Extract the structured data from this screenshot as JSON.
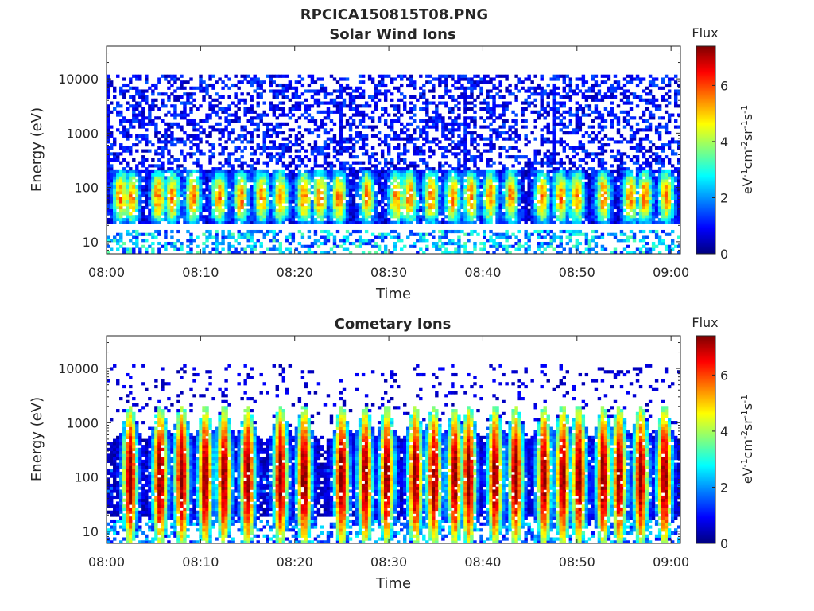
{
  "figure": {
    "title": "RPCICA150815T08.PNG"
  },
  "colormap": {
    "name": "jet",
    "stops": [
      "#00007f",
      "#0000ff",
      "#007fff",
      "#00ffff",
      "#7fff7f",
      "#ffff00",
      "#ff7f00",
      "#ff0000",
      "#7f0000"
    ]
  },
  "chart_data": [
    {
      "type": "heatmap",
      "title": "Solar Wind Ions",
      "xlabel": "Time",
      "ylabel": "Energy (eV)",
      "xlim": [
        "08:00",
        "09:01"
      ],
      "x_ticks": [
        "08:00",
        "08:10",
        "08:20",
        "08:30",
        "08:40",
        "08:50",
        "09:00"
      ],
      "y_scale": "log",
      "ylim": [
        6,
        40000
      ],
      "y_ticks": [
        "10",
        "100",
        "1000",
        "10000"
      ],
      "colorbar": {
        "label": "Flux",
        "unit": "eV-1cm-2sr-1s-1",
        "range": [
          0,
          7.4
        ],
        "ticks": [
          "0",
          "2",
          "4",
          "6"
        ]
      },
      "grid": false,
      "bursts_minutes": [
        1.5,
        2.7,
        5.5,
        7.0,
        9.2,
        12.0,
        14.3,
        16.5,
        18.5,
        21.0,
        22.7,
        24.7,
        27.7,
        30.8,
        32.2,
        34.5,
        36.8,
        38.7,
        40.8,
        43.0,
        46.3,
        48.3,
        50.0,
        52.8,
        55.7,
        57.2,
        59.5
      ],
      "peak_flux": 5.0,
      "peak_energy_eV": [
        30,
        150
      ]
    },
    {
      "type": "heatmap",
      "title": "Cometary Ions",
      "xlabel": "Time",
      "ylabel": "Energy (eV)",
      "xlim": [
        "08:00",
        "09:01"
      ],
      "x_ticks": [
        "08:00",
        "08:10",
        "08:20",
        "08:30",
        "08:40",
        "08:50",
        "09:00"
      ],
      "y_scale": "log",
      "ylim": [
        6,
        40000
      ],
      "y_ticks": [
        "10",
        "100",
        "1000",
        "10000"
      ],
      "colorbar": {
        "label": "Flux",
        "unit": "eV-1cm-2sr-1s-1",
        "range": [
          0,
          7.4
        ],
        "ticks": [
          "0",
          "2",
          "4",
          "6"
        ]
      },
      "grid": false,
      "bursts_minutes": [
        2.5,
        5.7,
        8.0,
        10.5,
        12.5,
        15.0,
        18.5,
        21.0,
        25.0,
        27.5,
        29.8,
        32.8,
        34.8,
        37.0,
        38.5,
        41.3,
        43.5,
        46.5,
        48.5,
        50.2,
        52.8,
        54.5,
        56.8,
        59.3
      ],
      "peak_flux": 7.0,
      "peak_energy_eV": [
        20,
        500
      ]
    }
  ]
}
